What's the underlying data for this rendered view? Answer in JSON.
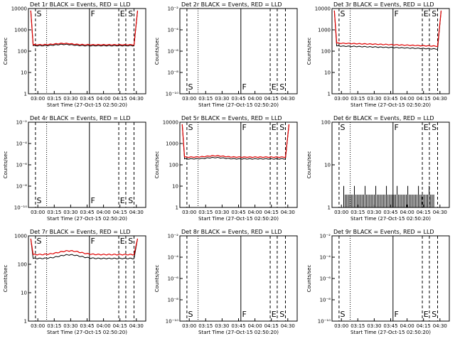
{
  "time_ticks": [
    "03:00",
    "03:15",
    "03:30",
    "03:45",
    "04:00",
    "04:15",
    "04:30"
  ],
  "xlabel": "Start Time (27-Oct-15 02:50:20)",
  "ylabel": "Counts/sec",
  "x_range_min": [
    0,
    100
  ],
  "marker_labels": [
    "S",
    "F",
    "E",
    "S"
  ],
  "colors": {
    "events": "#000000",
    "lld": "#e00000"
  },
  "chart_data": [
    {
      "type": "line",
      "title": "Det 1r BLACK = Events, RED = LLD",
      "ylim": [
        1,
        10000
      ],
      "yticks": [
        "1",
        "10",
        "100",
        "1000",
        "10000"
      ],
      "series": [
        {
          "name": "Events",
          "shape": "flat",
          "level": 180
        },
        {
          "name": "LLD",
          "shape": "flat",
          "level": 200
        }
      ]
    },
    {
      "type": "line",
      "title": "Det 2r BLACK = Events, RED = LLD",
      "ylim": [
        1e-10,
        0.01
      ],
      "yticks": [
        "10⁻¹⁰",
        "10⁻⁸",
        "10⁻⁶",
        "10⁻⁴",
        "10⁻²"
      ],
      "series": []
    },
    {
      "type": "line",
      "title": "Det 3r BLACK = Events, RED = LLD",
      "ylim": [
        1,
        10000
      ],
      "yticks": [
        "1",
        "10",
        "100",
        "1000",
        "10000"
      ],
      "series": [
        {
          "name": "Events",
          "shape": "decline",
          "level": 140
        },
        {
          "name": "LLD",
          "shape": "decline",
          "level": 190
        }
      ]
    },
    {
      "type": "line",
      "title": "Det 4r BLACK = Events, RED = LLD",
      "ylim": [
        1e-10,
        0.01
      ],
      "yticks": [
        "10⁻¹⁰",
        "10⁻⁸",
        "10⁻⁶",
        "10⁻⁴",
        "10⁻²"
      ],
      "series": []
    },
    {
      "type": "line",
      "title": "Det 5r BLACK = Events, RED = LLD",
      "ylim": [
        1,
        10000
      ],
      "yticks": [
        "1",
        "10",
        "100",
        "1000",
        "10000"
      ],
      "series": [
        {
          "name": "Events",
          "shape": "flat",
          "level": 190
        },
        {
          "name": "LLD",
          "shape": "flat",
          "level": 230
        }
      ]
    },
    {
      "type": "line",
      "title": "Det 6r BLACK = Events, RED = LLD",
      "ylim": [
        1,
        100
      ],
      "yticks": [
        "1",
        "10",
        "100"
      ],
      "series": [
        {
          "name": "Events",
          "shape": "spiky",
          "level": 2
        }
      ]
    },
    {
      "type": "line",
      "title": "Det 7r BLACK = Events, RED = LLD",
      "ylim": [
        1,
        1000
      ],
      "yticks": [
        "1",
        "10",
        "100",
        "1000"
      ],
      "series": [
        {
          "name": "Events",
          "shape": "bump",
          "level": 160
        },
        {
          "name": "LLD",
          "shape": "bump",
          "level": 220
        }
      ]
    },
    {
      "type": "line",
      "title": "Det 8r BLACK = Events, RED = LLD",
      "ylim": [
        1e-10,
        0.01
      ],
      "yticks": [
        "10⁻¹⁰",
        "10⁻⁸",
        "10⁻⁶",
        "10⁻⁴",
        "10⁻²"
      ],
      "series": []
    },
    {
      "type": "line",
      "title": "Det 9r BLACK = Events, RED = LLD",
      "ylim": [
        1e-10,
        0.01
      ],
      "yticks": [
        "10⁻¹⁰",
        "10⁻⁸",
        "10⁻⁶",
        "10⁻⁴",
        "10⁻²"
      ],
      "series": []
    }
  ]
}
